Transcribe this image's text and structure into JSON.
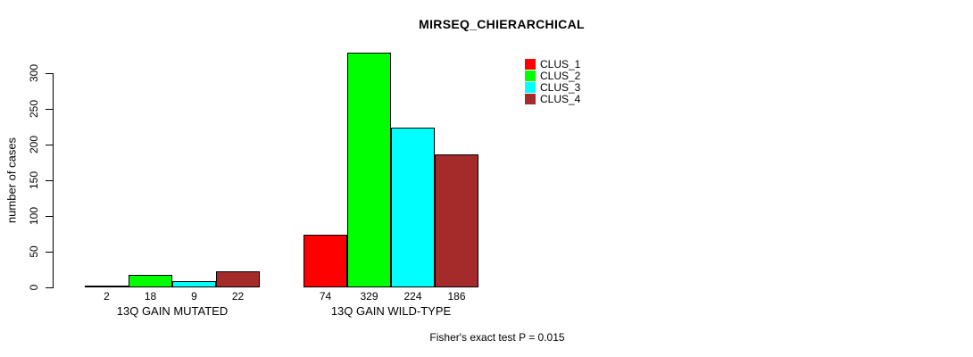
{
  "chart_data": {
    "type": "bar",
    "title": "MIRSEQ_CHIERARCHICAL",
    "ylabel": "number of cases",
    "xlabel": "",
    "ylim": [
      0,
      300
    ],
    "yticks": [
      0,
      50,
      100,
      150,
      200,
      250,
      300
    ],
    "grid": false,
    "categories": [
      "13Q GAIN MUTATED",
      "13Q GAIN WILD-TYPE"
    ],
    "series": [
      {
        "name": "CLUS_1",
        "color": "#FF0000",
        "values": [
          2,
          74
        ]
      },
      {
        "name": "CLUS_2",
        "color": "#00FF00",
        "values": [
          18,
          329
        ]
      },
      {
        "name": "CLUS_3",
        "color": "#00FFFF",
        "values": [
          9,
          224
        ]
      },
      {
        "name": "CLUS_4",
        "color": "#A52A2A",
        "values": [
          22,
          186
        ]
      }
    ],
    "legend_position": "top-right",
    "annotation": "Fisher's exact test P = 0.015"
  },
  "colors": {
    "background": "#FFFFFF",
    "axis": "#000000",
    "text": "#000000"
  }
}
